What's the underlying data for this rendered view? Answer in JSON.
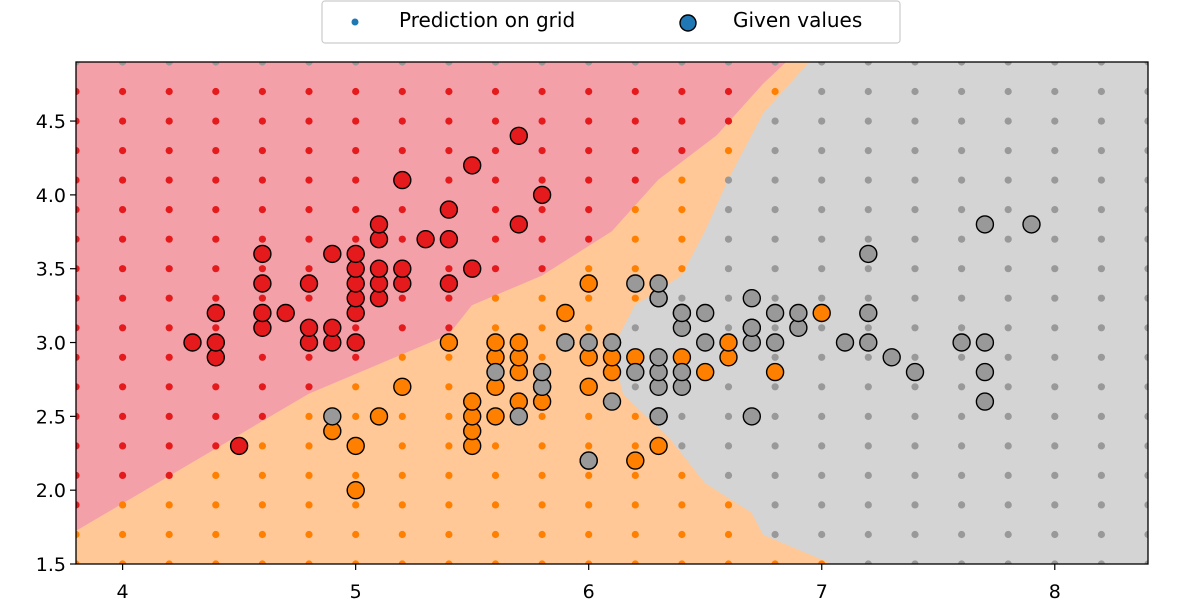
{
  "chart_data": {
    "type": "scatter",
    "title": "",
    "xlabel": "",
    "ylabel": "",
    "xlim": [
      3.8,
      8.4
    ],
    "ylim": [
      1.5,
      4.9
    ],
    "xticks": [
      "4",
      "5",
      "6",
      "7",
      "8"
    ],
    "yticks": [
      "1.5",
      "2.0",
      "2.5",
      "3.0",
      "3.5",
      "4.0",
      "4.5"
    ],
    "legend": {
      "placement": "top-center",
      "entries": [
        "Prediction on grid",
        "Given values"
      ]
    },
    "classes": [
      {
        "name": "class-0",
        "region_color": "#f4a0a8",
        "point_color": "#e41a1c"
      },
      {
        "name": "class-1",
        "region_color": "#ffc896",
        "point_color": "#ff7f00"
      },
      {
        "name": "class-2",
        "region_color": "#d4d4d4",
        "point_color": "#999999"
      }
    ],
    "decision_regions": {
      "class-0": [
        [
          3.8,
          1.72
        ],
        [
          4.8,
          2.65
        ],
        [
          5.4,
          3.05
        ],
        [
          5.5,
          3.25
        ],
        [
          5.8,
          3.45
        ],
        [
          6.1,
          3.75
        ],
        [
          6.3,
          4.1
        ],
        [
          6.55,
          4.4
        ],
        [
          6.75,
          4.75
        ],
        [
          6.85,
          4.9
        ],
        [
          3.8,
          4.9
        ]
      ],
      "class-1": [
        [
          3.8,
          1.5
        ],
        [
          7.05,
          1.5
        ],
        [
          6.75,
          1.7
        ],
        [
          6.7,
          1.85
        ],
        [
          6.5,
          2.05
        ],
        [
          6.35,
          2.35
        ],
        [
          6.15,
          2.65
        ],
        [
          6.1,
          2.95
        ],
        [
          6.2,
          3.25
        ],
        [
          6.4,
          3.45
        ],
        [
          6.5,
          3.75
        ],
        [
          6.6,
          4.1
        ],
        [
          6.75,
          4.55
        ],
        [
          6.95,
          4.9
        ],
        [
          6.85,
          4.9
        ],
        [
          6.75,
          4.75
        ],
        [
          6.55,
          4.4
        ],
        [
          6.3,
          4.1
        ],
        [
          6.1,
          3.75
        ],
        [
          5.8,
          3.45
        ],
        [
          5.5,
          3.25
        ],
        [
          5.4,
          3.05
        ],
        [
          4.8,
          2.65
        ],
        [
          3.8,
          1.72
        ]
      ],
      "class-2": [
        [
          7.05,
          1.5
        ],
        [
          8.4,
          1.5
        ],
        [
          8.4,
          4.9
        ],
        [
          6.95,
          4.9
        ],
        [
          6.75,
          4.55
        ],
        [
          6.6,
          4.1
        ],
        [
          6.5,
          3.75
        ],
        [
          6.4,
          3.45
        ],
        [
          6.2,
          3.25
        ],
        [
          6.1,
          2.95
        ],
        [
          6.15,
          2.65
        ],
        [
          6.35,
          2.35
        ],
        [
          6.5,
          2.05
        ],
        [
          6.7,
          1.85
        ],
        [
          6.75,
          1.7
        ]
      ]
    },
    "grid_prediction": {
      "x_start": 3.6,
      "x_step": 0.2,
      "x_count": 25,
      "y_start": 1.5,
      "y_step": 0.2,
      "y_count": 18
    },
    "series": [
      {
        "name": "Given values",
        "class": "class-0",
        "points": [
          [
            4.3,
            3.0
          ],
          [
            4.4,
            2.9
          ],
          [
            4.4,
            3.0
          ],
          [
            4.4,
            3.2
          ],
          [
            4.5,
            2.3
          ],
          [
            4.6,
            3.1
          ],
          [
            4.6,
            3.2
          ],
          [
            4.6,
            3.4
          ],
          [
            4.6,
            3.6
          ],
          [
            4.7,
            3.2
          ],
          [
            4.8,
            3.0
          ],
          [
            4.8,
            3.1
          ],
          [
            4.8,
            3.4
          ],
          [
            4.9,
            3.0
          ],
          [
            4.9,
            3.1
          ],
          [
            4.9,
            3.6
          ],
          [
            5.0,
            3.0
          ],
          [
            5.0,
            3.2
          ],
          [
            5.0,
            3.3
          ],
          [
            5.0,
            3.4
          ],
          [
            5.0,
            3.5
          ],
          [
            5.0,
            3.6
          ],
          [
            5.1,
            3.3
          ],
          [
            5.1,
            3.4
          ],
          [
            5.1,
            3.5
          ],
          [
            5.1,
            3.7
          ],
          [
            5.1,
            3.8
          ],
          [
            5.2,
            3.4
          ],
          [
            5.2,
            3.5
          ],
          [
            5.2,
            4.1
          ],
          [
            5.3,
            3.7
          ],
          [
            5.4,
            3.4
          ],
          [
            5.4,
            3.7
          ],
          [
            5.4,
            3.9
          ],
          [
            5.5,
            3.5
          ],
          [
            5.5,
            4.2
          ],
          [
            5.7,
            3.8
          ],
          [
            5.7,
            4.4
          ],
          [
            5.8,
            4.0
          ]
        ]
      },
      {
        "name": "Given values",
        "class": "class-1",
        "points": [
          [
            4.9,
            2.4
          ],
          [
            5.0,
            2.0
          ],
          [
            5.0,
            2.3
          ],
          [
            5.1,
            2.5
          ],
          [
            5.2,
            2.7
          ],
          [
            5.4,
            3.0
          ],
          [
            5.5,
            2.3
          ],
          [
            5.5,
            2.4
          ],
          [
            5.5,
            2.5
          ],
          [
            5.5,
            2.6
          ],
          [
            5.6,
            2.5
          ],
          [
            5.6,
            2.7
          ],
          [
            5.6,
            2.9
          ],
          [
            5.6,
            3.0
          ],
          [
            5.7,
            2.6
          ],
          [
            5.7,
            2.8
          ],
          [
            5.7,
            2.9
          ],
          [
            5.7,
            3.0
          ],
          [
            5.8,
            2.6
          ],
          [
            5.8,
            2.7
          ],
          [
            5.9,
            3.0
          ],
          [
            5.9,
            3.2
          ],
          [
            6.0,
            2.2
          ],
          [
            6.0,
            2.7
          ],
          [
            6.0,
            2.9
          ],
          [
            6.0,
            3.4
          ],
          [
            6.1,
            2.8
          ],
          [
            6.1,
            2.9
          ],
          [
            6.1,
            3.0
          ],
          [
            6.2,
            2.2
          ],
          [
            6.2,
            2.9
          ],
          [
            6.3,
            2.3
          ],
          [
            6.3,
            2.5
          ],
          [
            6.3,
            3.3
          ],
          [
            6.4,
            2.9
          ],
          [
            6.4,
            3.2
          ],
          [
            6.5,
            2.8
          ],
          [
            6.6,
            2.9
          ],
          [
            6.6,
            3.0
          ],
          [
            6.7,
            3.1
          ],
          [
            6.8,
            2.8
          ],
          [
            7.0,
            3.2
          ]
        ]
      },
      {
        "name": "Given values",
        "class": "class-2",
        "points": [
          [
            4.9,
            2.5
          ],
          [
            5.6,
            2.8
          ],
          [
            5.7,
            2.5
          ],
          [
            5.8,
            2.7
          ],
          [
            5.8,
            2.8
          ],
          [
            5.9,
            3.0
          ],
          [
            6.0,
            2.2
          ],
          [
            6.0,
            3.0
          ],
          [
            6.1,
            2.6
          ],
          [
            6.1,
            3.0
          ],
          [
            6.2,
            2.8
          ],
          [
            6.2,
            3.4
          ],
          [
            6.3,
            2.5
          ],
          [
            6.3,
            2.7
          ],
          [
            6.3,
            2.8
          ],
          [
            6.3,
            2.9
          ],
          [
            6.3,
            3.3
          ],
          [
            6.3,
            3.4
          ],
          [
            6.4,
            2.7
          ],
          [
            6.4,
            2.8
          ],
          [
            6.4,
            3.1
          ],
          [
            6.4,
            3.2
          ],
          [
            6.5,
            3.0
          ],
          [
            6.5,
            3.2
          ],
          [
            6.7,
            2.5
          ],
          [
            6.7,
            3.0
          ],
          [
            6.7,
            3.1
          ],
          [
            6.7,
            3.3
          ],
          [
            6.8,
            3.0
          ],
          [
            6.8,
            3.2
          ],
          [
            6.9,
            3.1
          ],
          [
            6.9,
            3.2
          ],
          [
            7.1,
            3.0
          ],
          [
            7.2,
            3.0
          ],
          [
            7.2,
            3.2
          ],
          [
            7.2,
            3.6
          ],
          [
            7.3,
            2.9
          ],
          [
            7.4,
            2.8
          ],
          [
            7.6,
            3.0
          ],
          [
            7.7,
            2.6
          ],
          [
            7.7,
            2.8
          ],
          [
            7.7,
            3.0
          ],
          [
            7.7,
            3.8
          ],
          [
            7.9,
            3.8
          ]
        ]
      }
    ]
  },
  "legend_marker_color": "#1f77b4"
}
